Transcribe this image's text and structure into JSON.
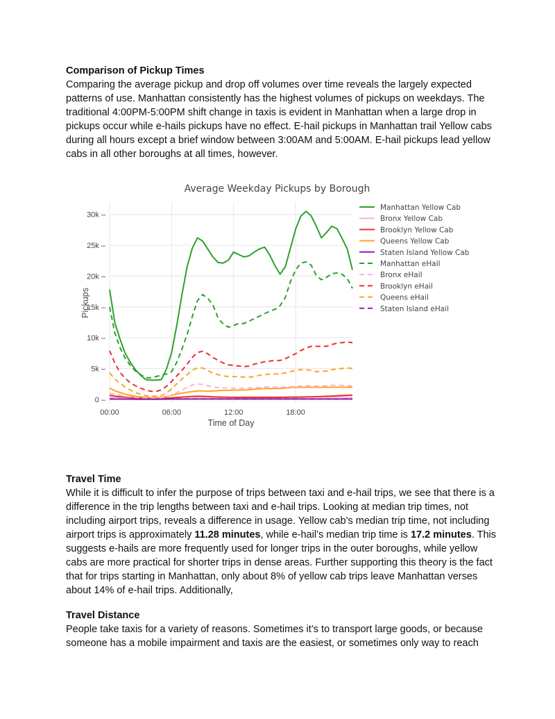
{
  "section1": {
    "heading": "Comparison of Pickup Times",
    "body": "Comparing the average pickup and drop off volumes over time reveals the largely expected patterns of use. Manhattan consistently has the highest volumes of pickups on weekdays. The traditional 4:00PM-5:00PM shift change in taxis is evident in Manhattan when a large drop in pickups occur while e-hails pickups have no effect. E-hail pickups in Manhattan trail Yellow cabs during all hours except a brief window between 3:00AM and 5:00AM. E-hail pickups lead yellow cabs in all other boroughs at all times, however."
  },
  "chart_data": {
    "type": "line",
    "title": "Average Weekday Pickups by Borough",
    "xlabel": "Time of Day",
    "ylabel": "Pickups",
    "x_tick_labels": [
      "00:00",
      "06:00",
      "12:00",
      "18:00"
    ],
    "x_tick_hours": [
      0,
      6,
      12,
      18
    ],
    "y_tick_labels": [
      "0",
      "5k",
      "10k",
      "15k",
      "20k",
      "25k",
      "30k"
    ],
    "y_tick_values": [
      0,
      5000,
      10000,
      15000,
      20000,
      25000,
      30000
    ],
    "xlim": [
      0,
      23.5
    ],
    "ylim": [
      -700,
      32000
    ],
    "grid": true,
    "legend_position": "right",
    "x": [
      0,
      0.5,
      1,
      1.5,
      2,
      2.5,
      3,
      3.5,
      4,
      4.5,
      5,
      5.5,
      6,
      6.5,
      7,
      7.5,
      8,
      8.5,
      9,
      9.5,
      10,
      10.5,
      11,
      11.5,
      12,
      12.5,
      13,
      13.5,
      14,
      14.5,
      15,
      15.5,
      16,
      16.5,
      17,
      17.5,
      18,
      18.5,
      19,
      19.5,
      20,
      20.5,
      21,
      21.5,
      22,
      22.5,
      23,
      23.5
    ],
    "series": [
      {
        "name": "Manhattan Yellow Cab",
        "color": "#2ca02c",
        "dash": false,
        "values": [
          17800,
          12500,
          9800,
          7500,
          6000,
          4800,
          3900,
          3200,
          3100,
          3100,
          3200,
          4900,
          7600,
          12000,
          17000,
          21500,
          24500,
          26200,
          25700,
          24400,
          23100,
          22200,
          22100,
          22600,
          23900,
          23500,
          23100,
          23300,
          23900,
          24400,
          24700,
          23400,
          21700,
          20300,
          21500,
          24500,
          27600,
          29700,
          30500,
          29800,
          28100,
          26200,
          27100,
          28100,
          27700,
          26100,
          24400,
          21000
        ]
      },
      {
        "name": "Bronx Yellow Cab",
        "color": "#f7b6d2",
        "dash": false,
        "values": [
          350,
          300,
          250,
          200,
          180,
          160,
          150,
          140,
          140,
          150,
          170,
          200,
          250,
          300,
          350,
          380,
          400,
          400,
          380,
          360,
          340,
          330,
          330,
          330,
          340,
          340,
          340,
          340,
          350,
          350,
          360,
          360,
          360,
          360,
          370,
          380,
          390,
          400,
          400,
          400,
          400,
          390,
          380,
          380,
          380,
          370,
          360,
          350
        ]
      },
      {
        "name": "Brooklyn Yellow Cab",
        "color": "#e8312f",
        "dash": false,
        "values": [
          650,
          520,
          430,
          350,
          290,
          240,
          200,
          170,
          150,
          150,
          160,
          190,
          240,
          300,
          360,
          420,
          470,
          500,
          480,
          450,
          410,
          380,
          360,
          340,
          330,
          320,
          320,
          320,
          320,
          320,
          320,
          320,
          320,
          320,
          330,
          340,
          350,
          360,
          380,
          400,
          430,
          460,
          490,
          530,
          570,
          610,
          650,
          690
        ]
      },
      {
        "name": "Queens Yellow Cab",
        "color": "#ffa321",
        "dash": false,
        "values": [
          1800,
          1400,
          1100,
          850,
          650,
          500,
          400,
          330,
          280,
          270,
          300,
          450,
          650,
          850,
          1000,
          1150,
          1250,
          1350,
          1350,
          1300,
          1350,
          1400,
          1450,
          1450,
          1500,
          1500,
          1500,
          1550,
          1650,
          1700,
          1750,
          1750,
          1750,
          1750,
          1800,
          1900,
          1950,
          1950,
          1950,
          1950,
          1950,
          1950,
          1950,
          1950,
          1950,
          1950,
          1950,
          1950
        ]
      },
      {
        "name": "Staten Island Yellow Cab",
        "color": "#8e1fa8",
        "dash": false,
        "values": [
          40,
          35,
          30,
          25,
          20,
          18,
          15,
          14,
          14,
          15,
          18,
          22,
          28,
          34,
          38,
          42,
          45,
          46,
          45,
          44,
          43,
          42,
          42,
          42,
          42,
          42,
          42,
          42,
          43,
          43,
          44,
          44,
          44,
          45,
          45,
          46,
          47,
          48,
          48,
          48,
          47,
          46,
          45,
          44,
          44,
          43,
          42,
          42
        ]
      },
      {
        "name": "Manhattan eHail",
        "color": "#2ca02c",
        "dash": true,
        "values": [
          15000,
          10800,
          8400,
          6700,
          5500,
          4600,
          4000,
          3500,
          3500,
          3700,
          3900,
          4100,
          4500,
          6000,
          8200,
          10500,
          13400,
          16000,
          17000,
          16400,
          15300,
          13200,
          12200,
          11700,
          12000,
          12300,
          12300,
          12700,
          13100,
          13500,
          13900,
          14300,
          14600,
          15200,
          16500,
          19100,
          21000,
          22100,
          22300,
          21800,
          20100,
          19400,
          19800,
          20400,
          20500,
          20300,
          19600,
          18000
        ]
      },
      {
        "name": "Bronx eHail",
        "color": "#f7b6d2",
        "dash": true,
        "values": [
          1000,
          800,
          650,
          500,
          400,
          320,
          250,
          220,
          200,
          200,
          250,
          400,
          700,
          1100,
          1500,
          1900,
          2300,
          2500,
          2400,
          2200,
          2000,
          1900,
          1850,
          1800,
          1800,
          1800,
          1800,
          1850,
          1900,
          1950,
          2000,
          2000,
          2000,
          2000,
          2000,
          2050,
          2100,
          2150,
          2200,
          2200,
          2150,
          2150,
          2200,
          2250,
          2250,
          2250,
          2200,
          2150
        ]
      },
      {
        "name": "Brooklyn eHail",
        "color": "#e8312f",
        "dash": true,
        "values": [
          7900,
          5900,
          4400,
          3400,
          2700,
          2200,
          1800,
          1500,
          1300,
          1300,
          1500,
          2100,
          2900,
          3800,
          4700,
          5700,
          6800,
          7600,
          7800,
          7400,
          6800,
          6300,
          5900,
          5600,
          5500,
          5400,
          5300,
          5400,
          5700,
          5900,
          6100,
          6200,
          6300,
          6300,
          6600,
          7000,
          7400,
          7900,
          8300,
          8600,
          8600,
          8600,
          8600,
          8900,
          9100,
          9200,
          9300,
          9200
        ]
      },
      {
        "name": "Queens eHail",
        "color": "#ffa321",
        "dash": true,
        "values": [
          4300,
          3300,
          2600,
          2000,
          1500,
          1100,
          800,
          600,
          500,
          500,
          600,
          1000,
          1700,
          2500,
          3300,
          4000,
          4700,
          5100,
          5100,
          4700,
          4200,
          4000,
          3800,
          3700,
          3700,
          3700,
          3600,
          3600,
          3700,
          3900,
          4000,
          4100,
          4100,
          4100,
          4300,
          4500,
          4700,
          4800,
          4800,
          4700,
          4500,
          4500,
          4600,
          4800,
          4900,
          5000,
          5100,
          5000
        ]
      },
      {
        "name": "Staten Island eHail",
        "color": "#8e1fa8",
        "dash": true,
        "values": [
          60,
          50,
          40,
          35,
          30,
          25,
          22,
          20,
          20,
          22,
          25,
          30,
          40,
          50,
          55,
          60,
          65,
          70,
          70,
          68,
          65,
          62,
          60,
          60,
          60,
          60,
          60,
          60,
          62,
          63,
          64,
          65,
          65,
          65,
          66,
          67,
          68,
          70,
          70,
          70,
          68,
          66,
          65,
          64,
          63,
          62,
          61,
          60
        ]
      }
    ]
  },
  "section2": {
    "heading": "Travel Time",
    "body_before_1": "While it is difficult to infer the purpose of trips between taxi and e-hail trips, we see that there is a difference in the trip lengths between taxi and e-hail trips. Looking at median trip times, not including airport trips, reveals a difference in usage. Yellow cab’s median trip time, not including airport trips is approximately ",
    "bold_1": "11.28 minutes",
    "body_between": ", while e-hail’s median trip time is ",
    "bold_2": "17.2 minutes",
    "body_after": ". This suggests e-hails are more frequently used for longer trips in the outer boroughs, while yellow cabs are more practical for shorter trips in dense areas. Further supporting this theory is the fact that for trips starting in Manhattan, only about 8% of yellow cab trips leave Manhattan verses about 14% of e-hail trips. Additionally,"
  },
  "section3": {
    "heading": "Travel Distance",
    "body": "People take taxis for a variety of reasons. Sometimes it’s to transport large goods, or because someone has a mobile impairment and taxis are the easiest, or sometimes only way to reach"
  }
}
